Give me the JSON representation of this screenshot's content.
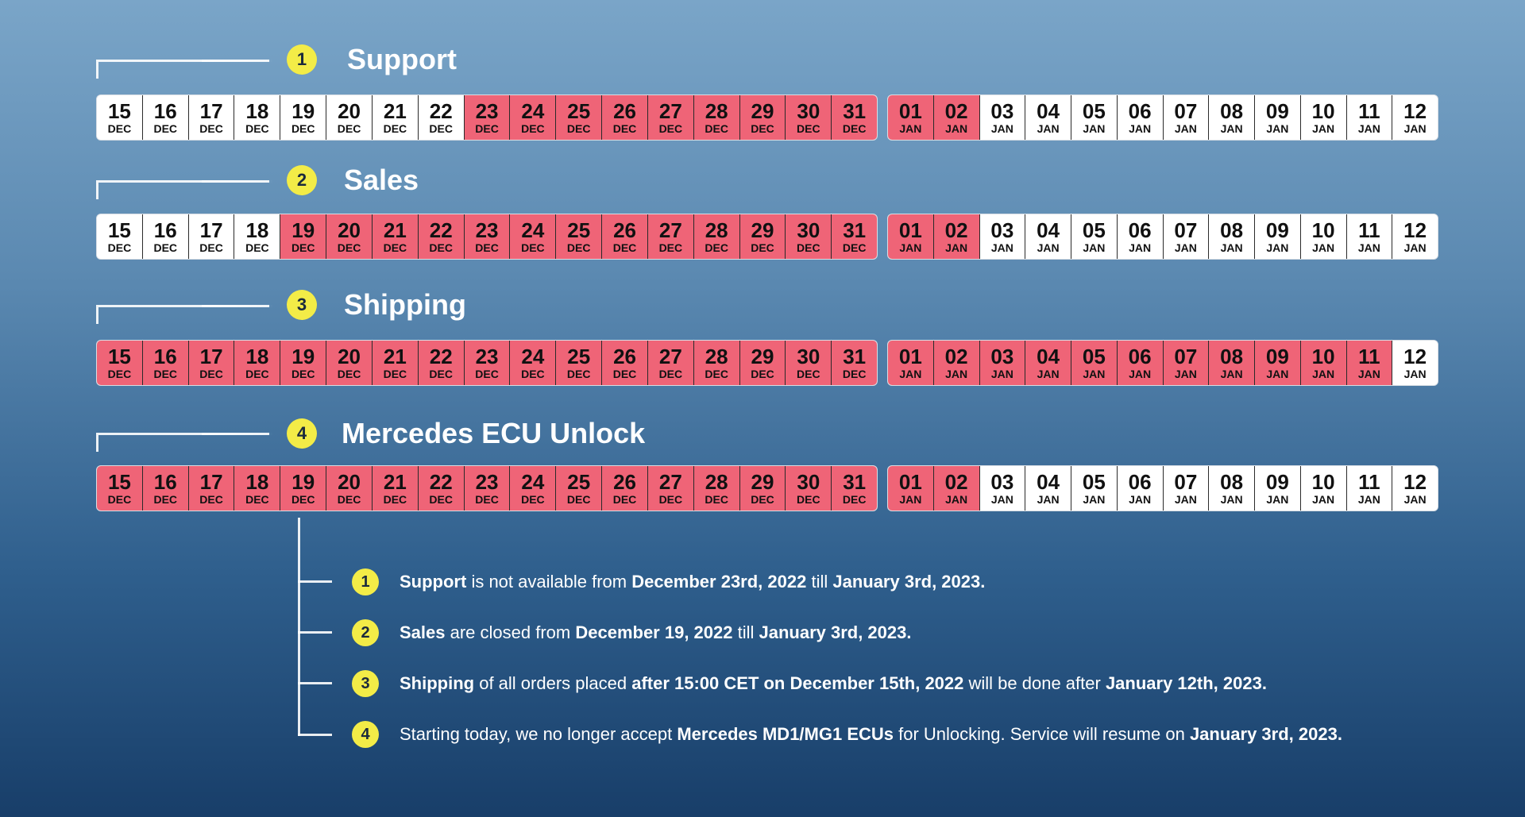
{
  "colors": {
    "closed": "#ef6477",
    "open": "#ffffff",
    "badge": "#f3ec47"
  },
  "sections": [
    {
      "number": "1",
      "title": "Support",
      "dec": {
        "days": [
          "15",
          "16",
          "17",
          "18",
          "19",
          "20",
          "21",
          "22",
          "23",
          "24",
          "25",
          "26",
          "27",
          "28",
          "29",
          "30",
          "31"
        ],
        "month": "DEC",
        "closed": [
          false,
          false,
          false,
          false,
          false,
          false,
          false,
          false,
          true,
          true,
          true,
          true,
          true,
          true,
          true,
          true,
          true
        ]
      },
      "jan": {
        "days": [
          "01",
          "02",
          "03",
          "04",
          "05",
          "06",
          "07",
          "08",
          "09",
          "10",
          "11",
          "12"
        ],
        "month": "JAN",
        "closed": [
          true,
          true,
          false,
          false,
          false,
          false,
          false,
          false,
          false,
          false,
          false,
          false
        ]
      }
    },
    {
      "number": "2",
      "title": "Sales",
      "dec": {
        "days": [
          "15",
          "16",
          "17",
          "18",
          "19",
          "20",
          "21",
          "22",
          "23",
          "24",
          "25",
          "26",
          "27",
          "28",
          "29",
          "30",
          "31"
        ],
        "month": "DEC",
        "closed": [
          false,
          false,
          false,
          false,
          true,
          true,
          true,
          true,
          true,
          true,
          true,
          true,
          true,
          true,
          true,
          true,
          true
        ]
      },
      "jan": {
        "days": [
          "01",
          "02",
          "03",
          "04",
          "05",
          "06",
          "07",
          "08",
          "09",
          "10",
          "11",
          "12"
        ],
        "month": "JAN",
        "closed": [
          true,
          true,
          false,
          false,
          false,
          false,
          false,
          false,
          false,
          false,
          false,
          false
        ]
      }
    },
    {
      "number": "3",
      "title": "Shipping",
      "dec": {
        "days": [
          "15",
          "16",
          "17",
          "18",
          "19",
          "20",
          "21",
          "22",
          "23",
          "24",
          "25",
          "26",
          "27",
          "28",
          "29",
          "30",
          "31"
        ],
        "month": "DEC",
        "closed": [
          true,
          true,
          true,
          true,
          true,
          true,
          true,
          true,
          true,
          true,
          true,
          true,
          true,
          true,
          true,
          true,
          true
        ]
      },
      "jan": {
        "days": [
          "01",
          "02",
          "03",
          "04",
          "05",
          "06",
          "07",
          "08",
          "09",
          "10",
          "11",
          "12"
        ],
        "month": "JAN",
        "closed": [
          true,
          true,
          true,
          true,
          true,
          true,
          true,
          true,
          true,
          true,
          true,
          false
        ]
      }
    },
    {
      "number": "4",
      "title": "Mercedes ECU Unlock",
      "dec": {
        "days": [
          "15",
          "16",
          "17",
          "18",
          "19",
          "20",
          "21",
          "22",
          "23",
          "24",
          "25",
          "26",
          "27",
          "28",
          "29",
          "30",
          "31"
        ],
        "month": "DEC",
        "closed": [
          true,
          true,
          true,
          true,
          true,
          true,
          true,
          true,
          true,
          true,
          true,
          true,
          true,
          true,
          true,
          true,
          true
        ]
      },
      "jan": {
        "days": [
          "01",
          "02",
          "03",
          "04",
          "05",
          "06",
          "07",
          "08",
          "09",
          "10",
          "11",
          "12"
        ],
        "month": "JAN",
        "closed": [
          true,
          true,
          false,
          false,
          false,
          false,
          false,
          false,
          false,
          false,
          false,
          false
        ]
      }
    }
  ],
  "notes": [
    {
      "number": "1",
      "segments": [
        {
          "t": "Support",
          "b": true
        },
        {
          "t": " is not available from ",
          "b": false
        },
        {
          "t": "December 23rd, 2022",
          "b": true
        },
        {
          "t": " till ",
          "b": false
        },
        {
          "t": "January 3rd, 2023.",
          "b": true
        }
      ]
    },
    {
      "number": "2",
      "segments": [
        {
          "t": "Sales",
          "b": true
        },
        {
          "t": " are closed from ",
          "b": false
        },
        {
          "t": "December 19, 2022",
          "b": true
        },
        {
          "t": " till ",
          "b": false
        },
        {
          "t": "January 3rd, 2023.",
          "b": true
        }
      ]
    },
    {
      "number": "3",
      "segments": [
        {
          "t": "Shipping",
          "b": true
        },
        {
          "t": " of all orders placed ",
          "b": false
        },
        {
          "t": "after 15:00 CET on December 15th, 2022",
          "b": true
        },
        {
          "t": " will be done after ",
          "b": false
        },
        {
          "t": "January 12th, 2023.",
          "b": true
        }
      ]
    },
    {
      "number": "4",
      "segments": [
        {
          "t": "Starting today, we no longer accept ",
          "b": false
        },
        {
          "t": "Mercedes MD1/MG1 ECUs",
          "b": true
        },
        {
          "t": " for Unlocking. Service will resume on ",
          "b": false
        },
        {
          "t": "January 3rd, 2023.",
          "b": true
        }
      ]
    }
  ]
}
